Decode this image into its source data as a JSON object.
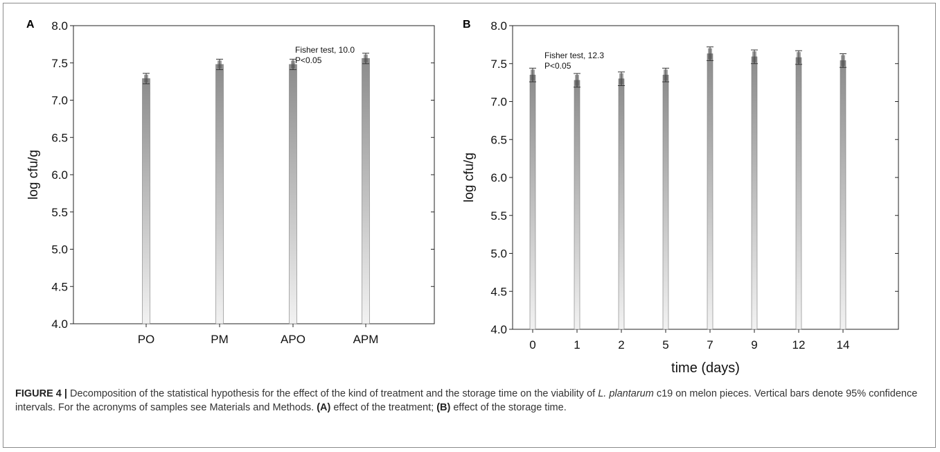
{
  "caption": {
    "label": "FIGURE 4 |",
    "part1": " Decomposition of the statistical hypothesis for the effect of the kind of treatment and the storage time on the viability of ",
    "italic": "L. plantarum",
    "part2": " c19 on melon pieces. Vertical bars denote 95% confidence intervals. For the acronyms of samples see Materials and Methods. ",
    "a_label": "(A)",
    "a_text": " effect of the treatment; ",
    "b_label": "(B)",
    "b_text": " effect of the storage time."
  },
  "colors": {
    "bar_top": "#8c8c8c",
    "bar_bottom": "#f2f2f2",
    "axis": "#222222",
    "frame": "#8a8a8a"
  },
  "chart_data": [
    {
      "panel": "A",
      "type": "bar",
      "categories": [
        "PO",
        "PM",
        "APO",
        "APM"
      ],
      "values": [
        7.29,
        7.48,
        7.48,
        7.56
      ],
      "ci_low": [
        7.22,
        7.41,
        7.41,
        7.49
      ],
      "ci_high": [
        7.36,
        7.55,
        7.55,
        7.63
      ],
      "ylabel": "log cfu/g",
      "xlabel": "",
      "ylim": [
        4.0,
        8.0
      ],
      "yticks": [
        "4.0",
        "4.5",
        "5.0",
        "5.5",
        "6.0",
        "6.5",
        "7.0",
        "7.5",
        "8.0"
      ],
      "annotation": [
        "Fisher test, 10.0",
        "P<0.05"
      ],
      "grid": false
    },
    {
      "panel": "B",
      "type": "bar",
      "categories": [
        "0",
        "1",
        "2",
        "5",
        "7",
        "9",
        "12",
        "14"
      ],
      "values": [
        7.35,
        7.28,
        7.3,
        7.35,
        7.63,
        7.59,
        7.58,
        7.54
      ],
      "ci_low": [
        7.26,
        7.19,
        7.21,
        7.26,
        7.54,
        7.5,
        7.49,
        7.45
      ],
      "ci_high": [
        7.44,
        7.37,
        7.39,
        7.44,
        7.72,
        7.68,
        7.67,
        7.63
      ],
      "ylabel": "log cfu/g",
      "xlabel": "time (days)",
      "ylim": [
        4.0,
        8.0
      ],
      "yticks": [
        "4.0",
        "4.5",
        "5.0",
        "5.5",
        "6.0",
        "6.5",
        "7.0",
        "7.5",
        "8.0"
      ],
      "annotation": [
        "Fisher test, 12.3",
        "P<0.05"
      ],
      "grid": false
    }
  ]
}
